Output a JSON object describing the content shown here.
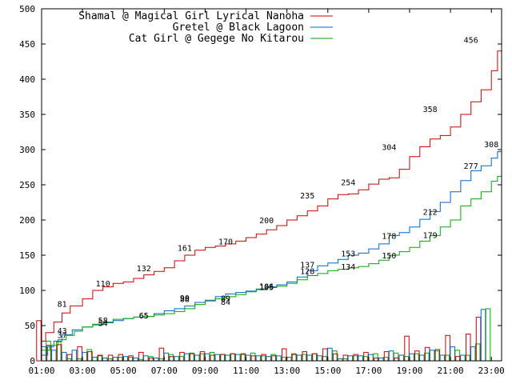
{
  "chart_data": {
    "type": "line",
    "xlim_hours": [
      1,
      23
    ],
    "ylim": [
      0,
      500
    ],
    "y_ticks": [
      0,
      50,
      100,
      150,
      200,
      250,
      300,
      350,
      400,
      450,
      500
    ],
    "x_ticks": [
      "01:00",
      "03:00",
      "05:00",
      "07:00",
      "09:00",
      "11:00",
      "13:00",
      "15:00",
      "17:00",
      "19:00",
      "21:00",
      "23:00"
    ],
    "series": [
      {
        "name": "Shamal @ Magical Girl Lyrical Nanoha",
        "color": "#cc0000",
        "points": [
          [
            1.0,
            28
          ],
          [
            1.2,
            40
          ],
          [
            1.6,
            55
          ],
          [
            2.0,
            68
          ],
          [
            2.4,
            78
          ],
          [
            3.0,
            88
          ],
          [
            3.5,
            100
          ],
          [
            4.0,
            105
          ],
          [
            4.5,
            110
          ],
          [
            5.0,
            112
          ],
          [
            5.5,
            117
          ],
          [
            6.0,
            122
          ],
          [
            6.5,
            127
          ],
          [
            7.0,
            132
          ],
          [
            7.5,
            142
          ],
          [
            8.0,
            150
          ],
          [
            8.5,
            157
          ],
          [
            9.0,
            161
          ],
          [
            9.5,
            163
          ],
          [
            10.0,
            166
          ],
          [
            10.5,
            170
          ],
          [
            11.0,
            175
          ],
          [
            11.5,
            180
          ],
          [
            12.0,
            186
          ],
          [
            12.5,
            192
          ],
          [
            13.0,
            200
          ],
          [
            13.5,
            206
          ],
          [
            14.0,
            213
          ],
          [
            14.5,
            220
          ],
          [
            15.0,
            230
          ],
          [
            15.5,
            236
          ],
          [
            16.0,
            237
          ],
          [
            16.5,
            243
          ],
          [
            17.0,
            251
          ],
          [
            17.5,
            258
          ],
          [
            18.0,
            260
          ],
          [
            18.5,
            272
          ],
          [
            19.0,
            290
          ],
          [
            19.5,
            304
          ],
          [
            20.0,
            315
          ],
          [
            20.5,
            320
          ],
          [
            21.0,
            332
          ],
          [
            21.5,
            350
          ],
          [
            22.0,
            368
          ],
          [
            22.5,
            385
          ],
          [
            23.0,
            412
          ],
          [
            23.3,
            440
          ],
          [
            23.5,
            456
          ]
        ],
        "labels": [
          [
            2.0,
            81
          ],
          [
            4.0,
            110
          ],
          [
            6.0,
            132
          ],
          [
            8.0,
            161
          ],
          [
            10.0,
            170
          ],
          [
            12.0,
            200
          ],
          [
            14.0,
            235
          ],
          [
            16.0,
            254
          ],
          [
            18.0,
            304
          ],
          [
            20.0,
            358
          ],
          [
            22.0,
            456
          ]
        ]
      },
      {
        "name": "Gretel @ Black Lagoon",
        "color": "#0066cc",
        "points": [
          [
            1.0,
            8
          ],
          [
            1.3,
            20
          ],
          [
            1.6,
            28
          ],
          [
            2.0,
            37
          ],
          [
            2.5,
            44
          ],
          [
            3.0,
            48
          ],
          [
            3.5,
            51
          ],
          [
            4.0,
            54
          ],
          [
            4.5,
            57
          ],
          [
            5.0,
            60
          ],
          [
            5.5,
            62
          ],
          [
            6.0,
            63
          ],
          [
            6.5,
            67
          ],
          [
            7.0,
            71
          ],
          [
            7.5,
            74
          ],
          [
            8.0,
            78
          ],
          [
            8.5,
            83
          ],
          [
            9.0,
            86
          ],
          [
            9.5,
            91
          ],
          [
            10.0,
            95
          ],
          [
            10.5,
            97
          ],
          [
            11.0,
            99
          ],
          [
            11.5,
            102
          ],
          [
            12.0,
            105
          ],
          [
            12.5,
            108
          ],
          [
            13.0,
            112
          ],
          [
            13.5,
            119
          ],
          [
            14.0,
            128
          ],
          [
            14.5,
            135
          ],
          [
            15.0,
            139
          ],
          [
            15.5,
            144
          ],
          [
            16.0,
            150
          ],
          [
            16.5,
            153
          ],
          [
            17.0,
            159
          ],
          [
            17.5,
            166
          ],
          [
            18.0,
            178
          ],
          [
            18.5,
            182
          ],
          [
            19.0,
            190
          ],
          [
            19.5,
            201
          ],
          [
            20.0,
            212
          ],
          [
            20.5,
            225
          ],
          [
            21.0,
            240
          ],
          [
            21.5,
            256
          ],
          [
            22.0,
            270
          ],
          [
            22.5,
            277
          ],
          [
            23.0,
            288
          ],
          [
            23.3,
            297
          ],
          [
            23.5,
            308
          ]
        ],
        "labels": [
          [
            2.0,
            37
          ],
          [
            4.0,
            54
          ],
          [
            6.0,
            65
          ],
          [
            8.0,
            90
          ],
          [
            10.0,
            89
          ],
          [
            12.0,
            106
          ],
          [
            14.0,
            137
          ],
          [
            16.0,
            153
          ],
          [
            18.0,
            178
          ],
          [
            20.0,
            212
          ],
          [
            22.0,
            277
          ],
          [
            23.0,
            308
          ]
        ]
      },
      {
        "name": "Cat Girl @ Gegege No Kitarou",
        "color": "#00aa00",
        "points": [
          [
            1.0,
            15
          ],
          [
            1.4,
            22
          ],
          [
            1.8,
            30
          ],
          [
            2.2,
            36
          ],
          [
            2.6,
            42
          ],
          [
            3.0,
            48
          ],
          [
            3.5,
            52
          ],
          [
            4.0,
            55
          ],
          [
            4.5,
            59
          ],
          [
            5.0,
            60
          ],
          [
            5.5,
            62
          ],
          [
            6.0,
            63
          ],
          [
            6.5,
            65
          ],
          [
            7.0,
            67
          ],
          [
            7.5,
            70
          ],
          [
            8.0,
            74
          ],
          [
            8.5,
            80
          ],
          [
            9.0,
            85
          ],
          [
            9.5,
            88
          ],
          [
            10.0,
            91
          ],
          [
            10.5,
            94
          ],
          [
            11.0,
            98
          ],
          [
            11.5,
            101
          ],
          [
            12.0,
            104
          ],
          [
            12.5,
            106
          ],
          [
            13.0,
            110
          ],
          [
            13.5,
            115
          ],
          [
            14.0,
            121
          ],
          [
            14.5,
            124
          ],
          [
            15.0,
            128
          ],
          [
            15.5,
            130
          ],
          [
            16.0,
            132
          ],
          [
            16.5,
            134
          ],
          [
            17.0,
            138
          ],
          [
            17.5,
            143
          ],
          [
            18.0,
            150
          ],
          [
            18.5,
            155
          ],
          [
            19.0,
            161
          ],
          [
            19.5,
            170
          ],
          [
            20.0,
            178
          ],
          [
            20.5,
            190
          ],
          [
            21.0,
            200
          ],
          [
            21.5,
            220
          ],
          [
            22.0,
            230
          ],
          [
            22.5,
            240
          ],
          [
            23.0,
            255
          ],
          [
            23.3,
            262
          ],
          [
            23.5,
            277
          ]
        ],
        "labels": [
          [
            2.0,
            43
          ],
          [
            4.0,
            58
          ],
          [
            6.0,
            65
          ],
          [
            8.0,
            88
          ],
          [
            10.0,
            84
          ],
          [
            12.0,
            105
          ],
          [
            14.0,
            128
          ],
          [
            16.0,
            134
          ],
          [
            18.0,
            150
          ],
          [
            20.0,
            179
          ]
        ]
      }
    ],
    "bars": {
      "hours": [
        1.1,
        1.6,
        2.1,
        2.6,
        3.1,
        3.6,
        4.1,
        4.6,
        5.1,
        5.6,
        6.1,
        6.6,
        7.1,
        7.6,
        8.1,
        8.6,
        9.1,
        9.6,
        10.1,
        10.6,
        11.1,
        11.6,
        12.1,
        12.6,
        13.1,
        13.6,
        14.1,
        14.6,
        15.1,
        15.6,
        16.1,
        16.6,
        17.1,
        17.6,
        18.1,
        18.6,
        19.1,
        19.6,
        20.1,
        20.6,
        21.1,
        21.6,
        22.1,
        22.6
      ],
      "series_values": [
        [
          57,
          22,
          23,
          9,
          20,
          13,
          8,
          8,
          9,
          7,
          12,
          4,
          18,
          6,
          12,
          10,
          13,
          8,
          9,
          10,
          10,
          7,
          9,
          7,
          17,
          9,
          13,
          10,
          17,
          10,
          8,
          9,
          12,
          4,
          13,
          4,
          35,
          14,
          19,
          16,
          36,
          6,
          38,
          62
        ],
        [
          20,
          15,
          12,
          15,
          12,
          5,
          4,
          5,
          6,
          4,
          7,
          4,
          11,
          6,
          10,
          8,
          10,
          9,
          8,
          9,
          8,
          7,
          6,
          7,
          5,
          8,
          8,
          7,
          18,
          3,
          7,
          7,
          9,
          4,
          14,
          8,
          10,
          8,
          15,
          8,
          20,
          8,
          20,
          73
        ],
        [
          28,
          27,
          3,
          3,
          16,
          7,
          3,
          5,
          5,
          2,
          6,
          3,
          9,
          6,
          11,
          10,
          12,
          9,
          10,
          9,
          11,
          7,
          9,
          5,
          10,
          9,
          10,
          6,
          14,
          3,
          7,
          6,
          10,
          5,
          11,
          6,
          10,
          11,
          14,
          8,
          15,
          8,
          24,
          74
        ]
      ]
    }
  }
}
